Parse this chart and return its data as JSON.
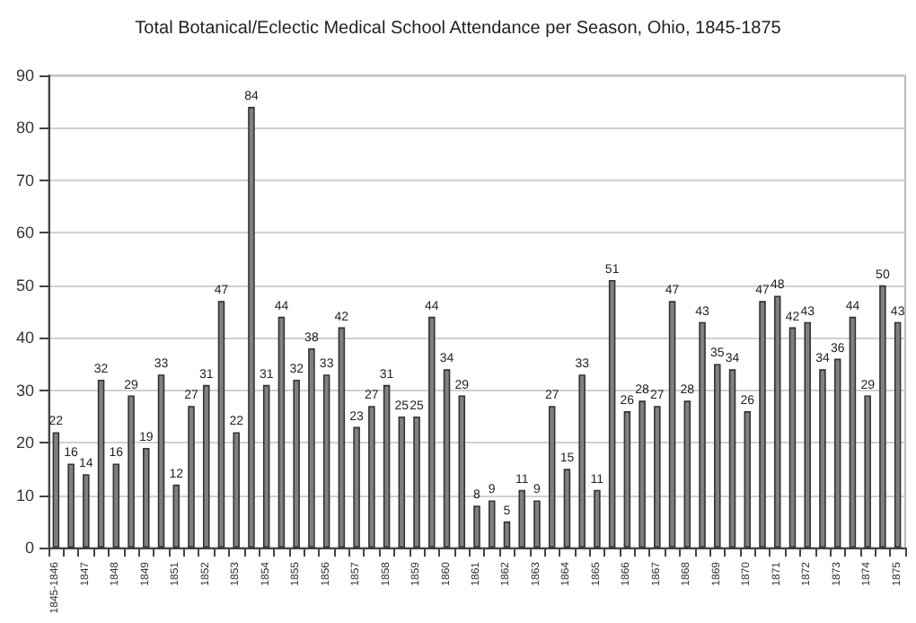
{
  "chart_data": {
    "type": "bar",
    "title": "Total Botanical/Eclectic Medical School Attendance per Season, Ohio, 1845-1875",
    "categories": [
      "1845-1846",
      null,
      "1847",
      null,
      "1848",
      null,
      "1849",
      null,
      "1851",
      null,
      "1852",
      null,
      "1853",
      null,
      "1854",
      null,
      "1855",
      null,
      "1856",
      null,
      "1857",
      null,
      "1858",
      null,
      "1859",
      null,
      "1860",
      null,
      "1861",
      null,
      "1862",
      null,
      "1863",
      null,
      "1864",
      null,
      "1865",
      null,
      "1866",
      null,
      "1867",
      null,
      "1868",
      null,
      "1869",
      null,
      "1870",
      null,
      "1871",
      null,
      "1872",
      null,
      "1873",
      null,
      "1874",
      null,
      "1875"
    ],
    "values": [
      22,
      16,
      14,
      32,
      16,
      29,
      19,
      33,
      12,
      27,
      31,
      47,
      22,
      84,
      31,
      44,
      32,
      38,
      33,
      42,
      23,
      27,
      31,
      25,
      25,
      44,
      34,
      29,
      8,
      9,
      5,
      11,
      9,
      27,
      15,
      33,
      11,
      51,
      26,
      28,
      27,
      47,
      28,
      43,
      35,
      34,
      26,
      47,
      48,
      42,
      43,
      34,
      36,
      44,
      29,
      50,
      43
    ],
    "color": "#808080",
    "ylim": [
      0,
      90
    ],
    "yticks": [
      0,
      10,
      20,
      30,
      40,
      50,
      60,
      70,
      80,
      90
    ],
    "grid": "y",
    "data_labels": true
  }
}
